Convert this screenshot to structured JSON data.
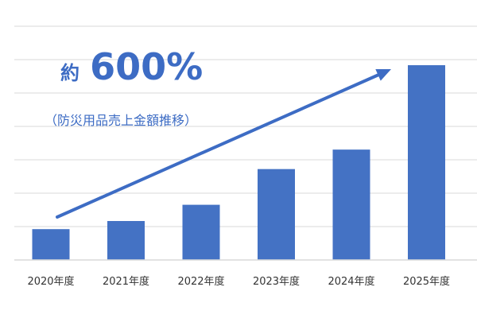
{
  "colors": {
    "bar": "#4472C4",
    "accent": "#3D6CC4",
    "grid": "#D9D9D9",
    "axis": "#D9D9D9",
    "tick_text": "#333333"
  },
  "headline": {
    "prefix": "約",
    "value": "600%",
    "caption": "（防災用品売上金額推移）"
  },
  "chart_data": {
    "type": "bar",
    "title": "",
    "xlabel": "",
    "ylabel": "",
    "categories": [
      "2020年度",
      "2021年度",
      "2022年度",
      "2023年度",
      "2024年度",
      "2025年度"
    ],
    "values": [
      9.5,
      12,
      17,
      28,
      34,
      60
    ],
    "ylim": [
      0,
      72
    ],
    "grid": true,
    "gridlines": 7,
    "y_tick_labels_shown": false,
    "legend": "none",
    "trend_arrow": {
      "from_category": 0,
      "to_category": 5,
      "direction": "up"
    }
  }
}
